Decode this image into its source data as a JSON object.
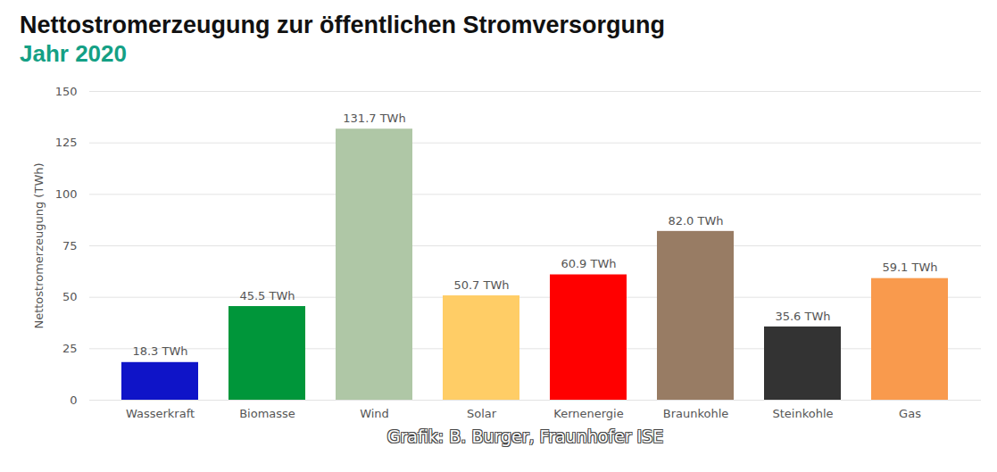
{
  "chart_data": {
    "type": "bar",
    "title": "Nettostromerzeugung zur öffentlichen Stromversorgung",
    "subtitle": "Jahr 2020",
    "y_label": "Nettostromerzeugung (TWh)",
    "caption": "Grafik: B. Burger, Fraunhofer ISE",
    "categories": [
      "Wasserkraft",
      "Biomasse",
      "Wind",
      "Solar",
      "Kernenergie",
      "Braunkohle",
      "Steinkohle",
      "Gas"
    ],
    "values": [
      18.3,
      45.5,
      131.7,
      50.7,
      60.9,
      82.0,
      35.6,
      59.1
    ],
    "value_labels": [
      "18.3 TWh",
      "45.5 TWh",
      "131.7 TWh",
      "50.7 TWh",
      "60.9 TWh",
      "82.0 TWh",
      "35.6 TWh",
      "59.1 TWh"
    ],
    "colors": [
      "#0f14c8",
      "#00963a",
      "#afc7a6",
      "#ffcd66",
      "#ff0000",
      "#987c64",
      "#333333",
      "#f99a4d"
    ],
    "ylim": [
      0,
      150
    ],
    "yticks": [
      0,
      25,
      50,
      75,
      100,
      125,
      150
    ],
    "grid": true,
    "data_labels": true
  }
}
